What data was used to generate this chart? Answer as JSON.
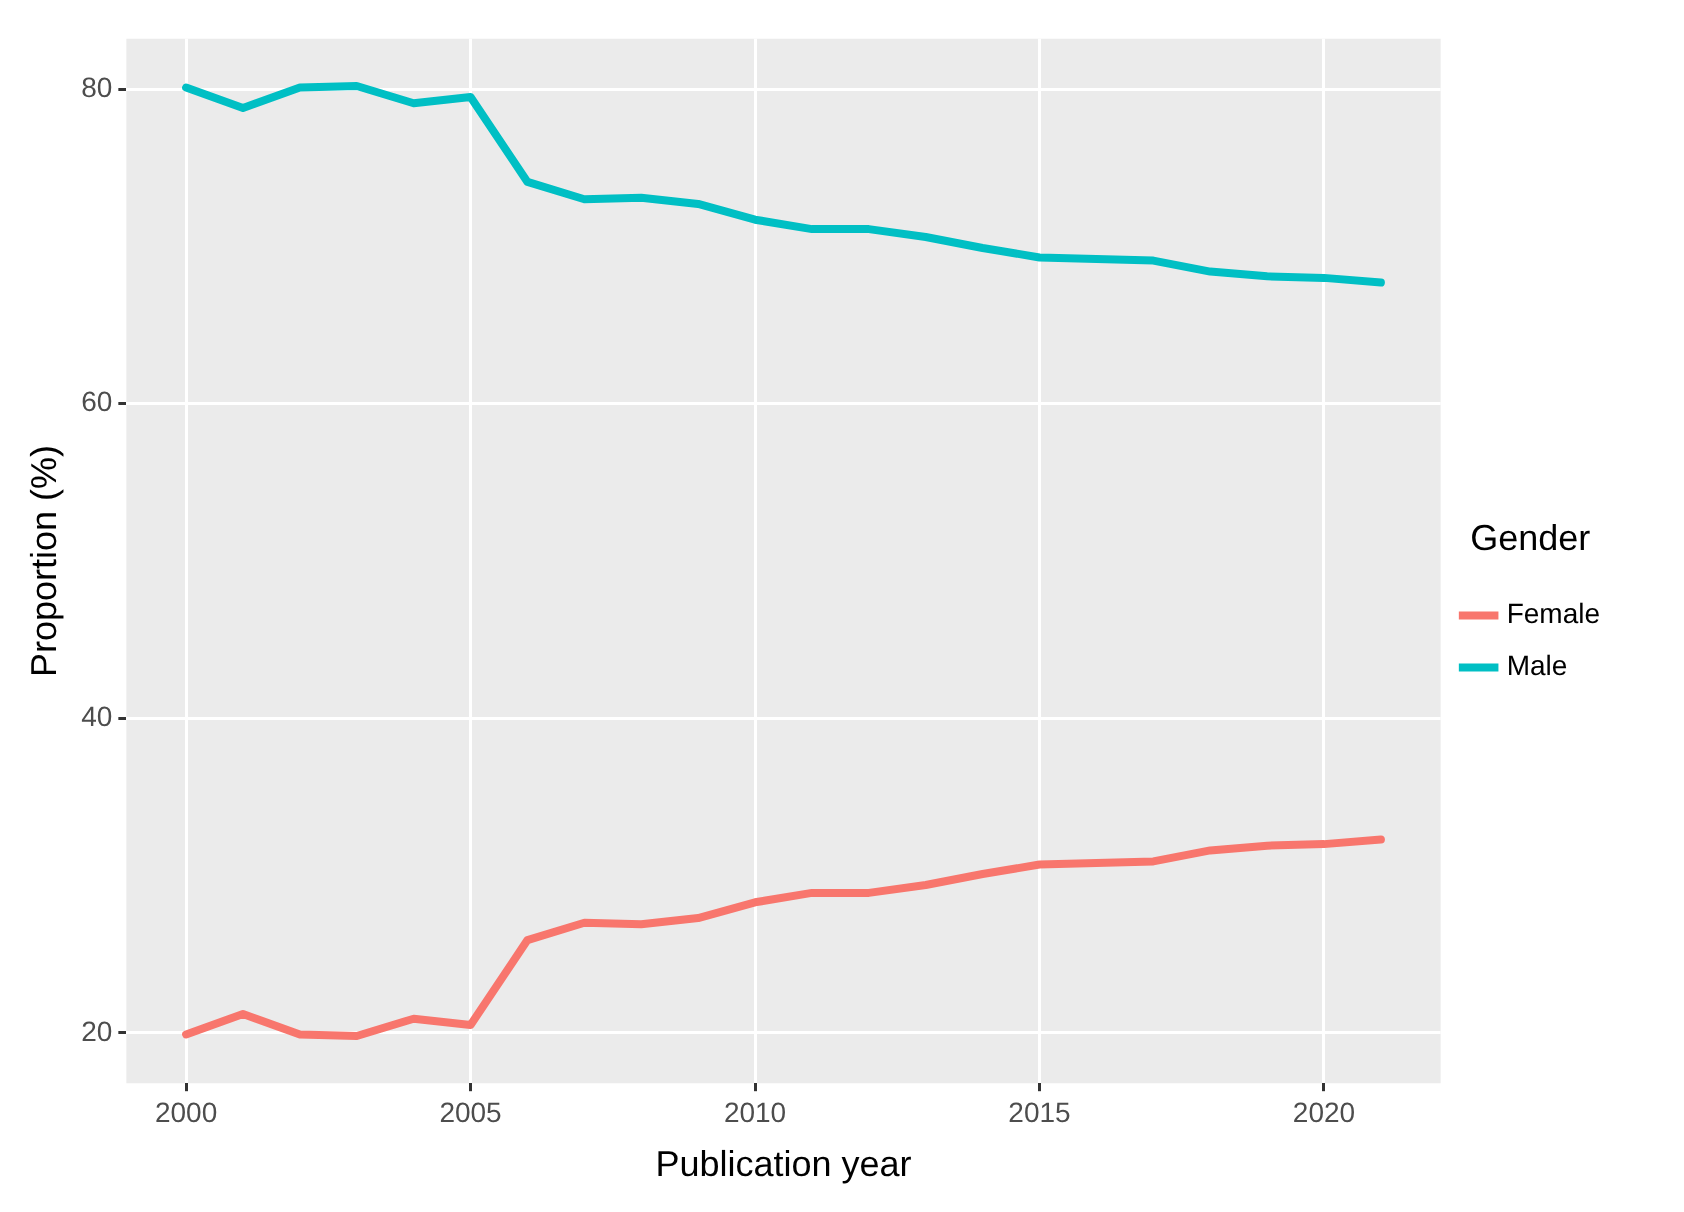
{
  "chart_data": {
    "type": "line",
    "xlabel": "Publication year",
    "ylabel": "Proportion (%)",
    "legend_title": "Gender",
    "legend": "right",
    "grid": true,
    "marker": "none",
    "line_style": "solid",
    "x": [
      2000,
      2001,
      2002,
      2003,
      2004,
      2005,
      2006,
      2007,
      2008,
      2009,
      2010,
      2011,
      2012,
      2013,
      2014,
      2015,
      2016,
      2017,
      2018,
      2019,
      2020,
      2021
    ],
    "series": [
      {
        "name": "Female",
        "color": "#f8766d",
        "values": [
          19.9,
          21.2,
          19.9,
          19.8,
          20.9,
          20.5,
          25.9,
          27.0,
          26.9,
          27.3,
          28.3,
          28.9,
          28.9,
          29.4,
          30.1,
          30.7,
          30.8,
          30.9,
          31.6,
          31.9,
          32.0,
          32.3
        ]
      },
      {
        "name": "Male",
        "color": "#00bfc4",
        "values": [
          80.1,
          78.8,
          80.1,
          80.2,
          79.1,
          79.5,
          74.1,
          73.0,
          73.1,
          72.7,
          71.7,
          71.1,
          71.1,
          70.6,
          69.9,
          69.3,
          69.2,
          69.1,
          68.4,
          68.1,
          68.0,
          67.7
        ]
      }
    ],
    "xlim": [
      1998.95,
      2022.05
    ],
    "xticks": [
      2000,
      2005,
      2010,
      2015,
      2020
    ],
    "ylim": [
      16.8,
      83.2
    ],
    "yticks": [
      20,
      40,
      60,
      80
    ]
  }
}
